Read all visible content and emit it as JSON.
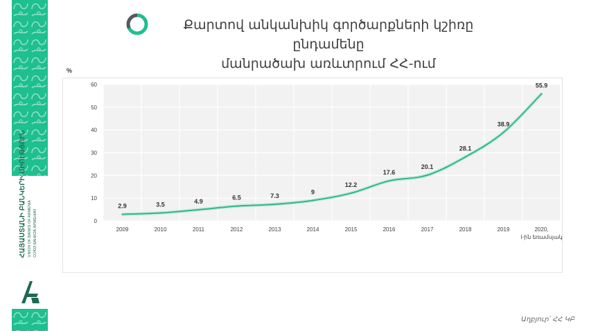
{
  "title": {
    "line1": "Քարտով անկանխիկ գործարքների կշիռը ընդամենը",
    "line2": "մանրածախ առևտրում ՀՀ-ում"
  },
  "logo": {
    "line1": "ՀԱՅԱՍՏԱՆԻ ԲԱՆԿԵՐԻ ՄԻՈՒԹՅՈՒՆ",
    "line2": "UNION OF BANKS OF ARMENIA",
    "line3": "СОЮЗ БАНКОВ АРМЕНИИ"
  },
  "source": "Աղբյուր՝ ՀՀ ԿԲ",
  "colors": {
    "accent": "#1fbf8f",
    "line": "#2fb58c",
    "icon_gray": "#5a5a5a"
  },
  "chart_data": {
    "type": "line",
    "y_unit": "%",
    "categories": [
      "2009",
      "2010",
      "2011",
      "2012",
      "2013",
      "2014",
      "2015",
      "2016",
      "2017",
      "2018",
      "2019",
      "2020, I-ին եռամսյակ"
    ],
    "values": [
      2.9,
      3.5,
      4.9,
      6.5,
      7.3,
      9,
      12.2,
      17.6,
      20.1,
      28.1,
      38.9,
      55.9
    ],
    "value_labels": [
      "2.9",
      "3.5",
      "4.9",
      "6.5",
      "7.3",
      "9",
      "12.2",
      "17.6",
      "20.1",
      "28.1",
      "38.9",
      "55.9"
    ],
    "y_ticks": [
      "0",
      "10",
      "20",
      "30",
      "40",
      "50",
      "60"
    ],
    "ylim": [
      0,
      60
    ],
    "grid": true
  }
}
